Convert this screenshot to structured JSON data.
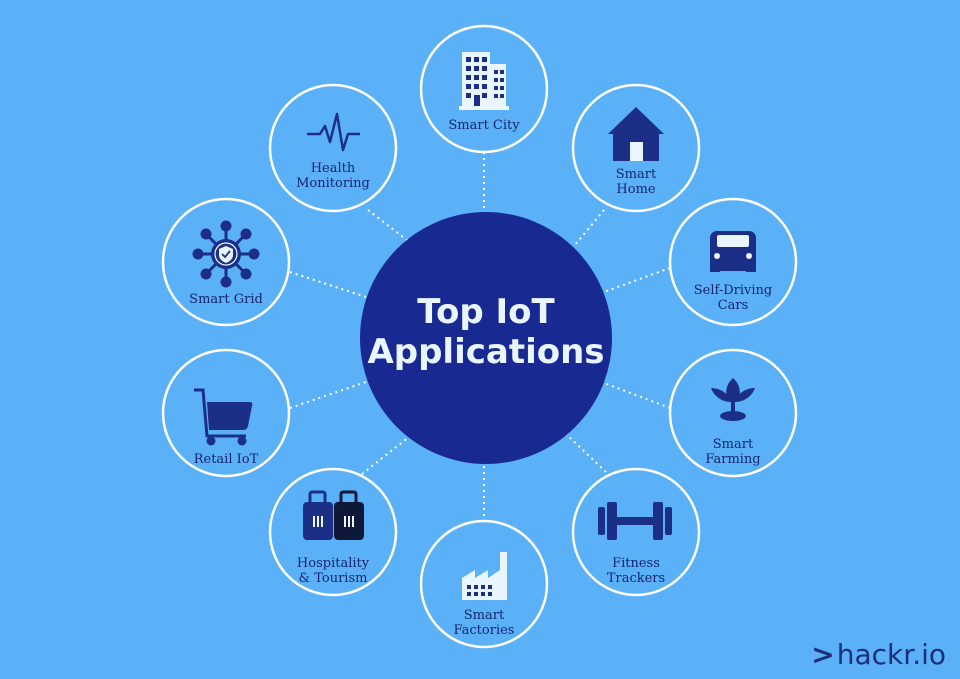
{
  "center": {
    "title": "Top IoT\nApplications"
  },
  "brand": {
    "prefix": ">",
    "name": "hackr.io"
  },
  "colors": {
    "background": "#5BB1F7",
    "center_fill": "#182A92",
    "icon": "#1B2F86",
    "node_border": "#FFFFFF",
    "node_fill": "#5BB1F7"
  },
  "nodes": [
    {
      "label": "Smart City",
      "icon": "building-icon"
    },
    {
      "label": "Smart\nHome",
      "icon": "house-icon"
    },
    {
      "label": "Self-Driving\nCars",
      "icon": "car-icon"
    },
    {
      "label": "Smart\nFarming",
      "icon": "plant-icon"
    },
    {
      "label": "Fitness\nTrackers",
      "icon": "dumbbell-icon"
    },
    {
      "label": "Smart\nFactories",
      "icon": "factory-icon"
    },
    {
      "label": "Hospitality\n& Tourism",
      "icon": "luggage-icon"
    },
    {
      "label": "Retail IoT",
      "icon": "cart-icon"
    },
    {
      "label": "Smart Grid",
      "icon": "grid-network-icon"
    },
    {
      "label": "Health\nMonitoring",
      "icon": "heartbeat-icon"
    }
  ]
}
